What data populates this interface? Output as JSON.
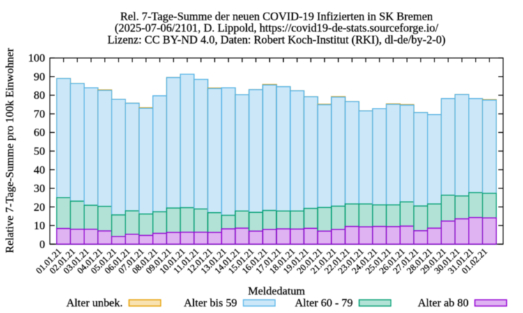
{
  "chart_data": {
    "type": "bar",
    "stacked": true,
    "title_lines": [
      "Rel. 7-Tage-Summe der neuen COVID-19 Infizierten in SK Bremen",
      "(2025-07-06/2101, D. Lippold, https://covid19-de-stats.sourceforge.io/",
      "Lizenz: CC BY-ND 4.0, Daten: Robert Koch-Institut (RKI), dl-de/by-2-0)"
    ],
    "xlabel": "Meldedatum",
    "ylabel": "Relative 7-Tage-Summe pro 100k Einwohner",
    "ylim": [
      0,
      100
    ],
    "ytick_step": 10,
    "ytick_labels": [
      "0",
      "10",
      "20",
      "30",
      "40",
      "50",
      "60",
      "70",
      "80",
      "90",
      "100"
    ],
    "grid": false,
    "legend_position": "below",
    "categories": [
      "01.01.21",
      "02.01.21",
      "03.01.21",
      "04.01.21",
      "05.01.21",
      "06.01.21",
      "07.01.21",
      "08.01.21",
      "09.01.21",
      "10.01.21",
      "11.01.21",
      "12.01.21",
      "13.01.21",
      "14.01.21",
      "15.01.21",
      "16.01.21",
      "17.01.21",
      "18.01.21",
      "19.01.21",
      "20.01.21",
      "21.01.21",
      "22.01.21",
      "23.01.21",
      "24.01.21",
      "25.01.21",
      "26.01.21",
      "27.01.21",
      "28.01.21",
      "29.01.21",
      "30.01.21",
      "31.01.21",
      "01.02.21"
    ],
    "series": [
      {
        "name": "Alter unbek.",
        "color": "#E69F00",
        "fill": "#F8E2B2",
        "values": [
          0,
          0,
          0,
          0,
          0,
          0,
          0,
          0,
          0,
          0,
          0,
          0,
          0,
          0,
          0,
          0,
          0,
          0,
          0,
          0,
          0,
          0,
          0,
          0,
          0,
          0,
          0,
          0,
          0,
          0,
          0,
          0
        ],
        "overshoot_bars": [
          3,
          6,
          11,
          15,
          19,
          20,
          24,
          25,
          31
        ]
      },
      {
        "name": "Alter bis 59",
        "color": "#56B4E9",
        "fill": "#CCE8F8",
        "values": [
          64.0,
          63.2,
          63.1,
          62.3,
          62.1,
          57.8,
          56.8,
          62.3,
          70.1,
          71.7,
          69.6,
          66.7,
          68.5,
          62.5,
          65.9,
          67.4,
          66.8,
          64.6,
          60.0,
          55.2,
          58.6,
          55.0,
          50.0,
          51.7,
          54.0,
          52.0,
          50.2,
          48.0,
          51.9,
          54.5,
          50.5,
          50.1
        ]
      },
      {
        "name": "Alter 60 - 79",
        "color": "#009E73",
        "fill": "#B2E2D5",
        "values": [
          16.6,
          15.1,
          12.9,
          13.2,
          11.6,
          12.6,
          11.5,
          11.6,
          13.1,
          13.2,
          12.5,
          10.6,
          7.3,
          9.2,
          10.1,
          10.2,
          9.6,
          9.7,
          10.7,
          12.7,
          12.5,
          12.1,
          12.3,
          11.6,
          11.7,
          13.0,
          13.3,
          13.0,
          13.9,
          12.3,
          13.4,
          13.2
        ]
      },
      {
        "name": "Alter ab 80",
        "color": "#9400D3",
        "fill": "#DFB2F2",
        "values": [
          8.4,
          8.0,
          8.0,
          7.1,
          4.1,
          5.3,
          4.7,
          5.8,
          6.3,
          6.4,
          6.4,
          6.3,
          8.2,
          8.6,
          7.0,
          7.9,
          8.2,
          8.1,
          8.5,
          7.0,
          7.9,
          9.5,
          9.3,
          9.5,
          9.4,
          9.7,
          7.2,
          8.6,
          12.4,
          13.6,
          14.3,
          14.1
        ]
      }
    ]
  }
}
